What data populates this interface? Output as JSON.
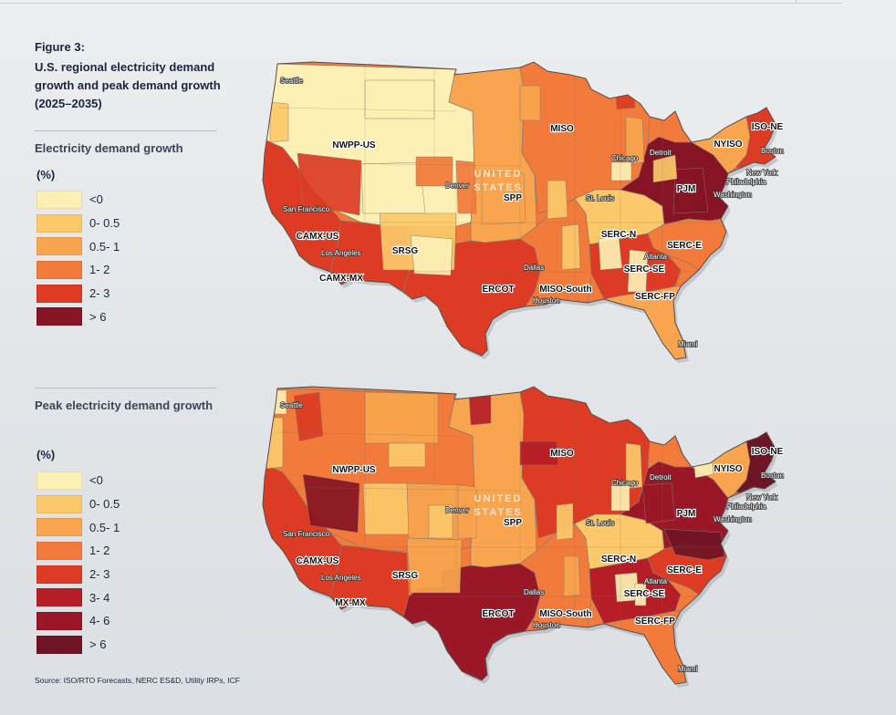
{
  "figure": {
    "label": "Figure 3:",
    "title": "U.S. regional electricity demand growth and peak demand growth (2025–2035)"
  },
  "legend_demand": {
    "title": "Electricity demand growth",
    "unit": "(%)",
    "items": [
      {
        "label": "<0",
        "color": "#fdf0b4"
      },
      {
        "label": "0- 0.5",
        "color": "#fcc96a"
      },
      {
        "label": "0.5- 1",
        "color": "#f9a54f"
      },
      {
        "label": "1- 2",
        "color": "#f27a3a"
      },
      {
        "label": "2- 3",
        "color": "#dd3b24"
      },
      {
        "label": "> 6",
        "color": "#861424"
      }
    ]
  },
  "legend_peak": {
    "title": "Peak electricity demand growth",
    "unit": "(%)",
    "items": [
      {
        "label": "<0",
        "color": "#fdf0b4"
      },
      {
        "label": "0- 0.5",
        "color": "#fcc96a"
      },
      {
        "label": "0.5- 1",
        "color": "#f9a54f"
      },
      {
        "label": "1- 2",
        "color": "#f27a3a"
      },
      {
        "label": "2- 3",
        "color": "#dd3b24"
      },
      {
        "label": "3- 4",
        "color": "#b51e26"
      },
      {
        "label": "4- 6",
        "color": "#9a1727"
      },
      {
        "label": "> 6",
        "color": "#6e1424"
      }
    ]
  },
  "watermark": [
    "UNITED",
    "STATES"
  ],
  "map_demand": {
    "regions": [
      {
        "label": "NWPP-US",
        "level": 0
      },
      {
        "label": "CAMX-US",
        "level": 4
      },
      {
        "label": "CAMX-MX",
        "level": 0
      },
      {
        "label": "SRSG",
        "level": 4
      },
      {
        "label": "SPP",
        "level": 2
      },
      {
        "label": "MISO",
        "level": 3
      },
      {
        "label": "ERCOT",
        "level": 4
      },
      {
        "label": "MISO-South",
        "level": 3
      },
      {
        "label": "SERC-N",
        "level": 1
      },
      {
        "label": "SERC-E",
        "level": 3
      },
      {
        "label": "SERC-SE",
        "level": 4
      },
      {
        "label": "SERC-FP",
        "level": 2
      },
      {
        "label": "PJM",
        "level": 5
      },
      {
        "label": "NYISO",
        "level": 2
      },
      {
        "label": "ISO-NE",
        "level": 4
      }
    ],
    "cities": [
      "Seattle",
      "San Francisco",
      "Los Angeles",
      "Denver",
      "Chicago",
      "Detroit",
      "St. Louis",
      "Dallas",
      "Houston",
      "Atlanta",
      "Philadelphia",
      "Washington",
      "New York",
      "Boston",
      "Miami"
    ]
  },
  "map_peak": {
    "regions": [
      {
        "label": "NWPP-US",
        "level": 3
      },
      {
        "label": "CAMX-US",
        "level": 4
      },
      {
        "label": "MX-MX",
        "level": 0
      },
      {
        "label": "SRSG",
        "level": 4
      },
      {
        "label": "SPP",
        "level": 2
      },
      {
        "label": "MISO",
        "level": 4
      },
      {
        "label": "ERCOT",
        "level": 6
      },
      {
        "label": "MISO-South",
        "level": 3
      },
      {
        "label": "SERC-N",
        "level": 1
      },
      {
        "label": "SERC-E",
        "level": 4
      },
      {
        "label": "SERC-SE",
        "level": 5
      },
      {
        "label": "SERC-FP",
        "level": 3
      },
      {
        "label": "PJM",
        "level": 6
      },
      {
        "label": "NYISO",
        "level": 2
      },
      {
        "label": "ISO-NE",
        "level": 7
      }
    ],
    "cities": [
      "Seattle",
      "San Francisco",
      "Los Angeles",
      "Denver",
      "Chicago",
      "Detroit",
      "St. Louis",
      "Dallas",
      "Houston",
      "Atlanta",
      "Philadelphia",
      "Washington",
      "New York",
      "Boston",
      "Miami"
    ]
  },
  "source": "Source: ISO/RTO Forecasts, NERC ES&D, Utility IRPs, ICF"
}
